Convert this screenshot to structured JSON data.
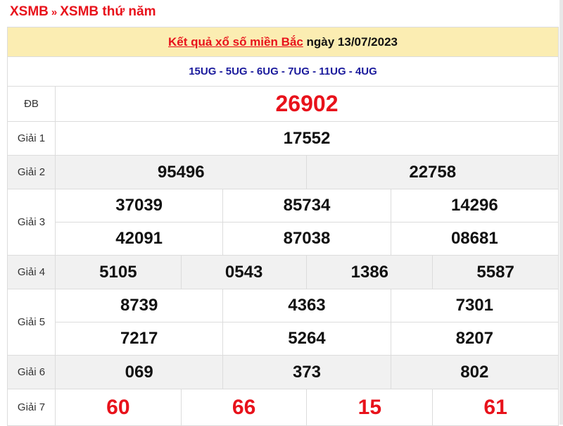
{
  "breadcrumb": {
    "home": "XSMB",
    "separator": "»",
    "current": "XSMB thứ năm"
  },
  "header": {
    "link_text": "Kết quả xổ số miền Bắc",
    "date_text": "ngày 13/07/2023"
  },
  "codes": "15UG - 5UG - 6UG - 7UG - 11UG - 4UG",
  "prizes": {
    "db": {
      "label": "ĐB",
      "numbers": [
        "26902"
      ]
    },
    "g1": {
      "label": "Giải 1",
      "numbers": [
        "17552"
      ]
    },
    "g2": {
      "label": "Giải 2",
      "numbers": [
        "95496",
        "22758"
      ]
    },
    "g3": {
      "label": "Giải 3",
      "numbers": [
        "37039",
        "85734",
        "14296",
        "42091",
        "87038",
        "08681"
      ]
    },
    "g4": {
      "label": "Giải 4",
      "numbers": [
        "5105",
        "0543",
        "1386",
        "5587"
      ]
    },
    "g5": {
      "label": "Giải 5",
      "numbers": [
        "8739",
        "4363",
        "7301",
        "7217",
        "5264",
        "8207"
      ]
    },
    "g6": {
      "label": "Giải 6",
      "numbers": [
        "069",
        "373",
        "802"
      ]
    },
    "g7": {
      "label": "Giải 7",
      "numbers": [
        "60",
        "66",
        "15",
        "61"
      ]
    }
  },
  "colors": {
    "accent_red": "#e8121b",
    "header_bg": "#fbedb2",
    "code_blue": "#1a1a9c",
    "alt_row": "#f1f1f1"
  }
}
